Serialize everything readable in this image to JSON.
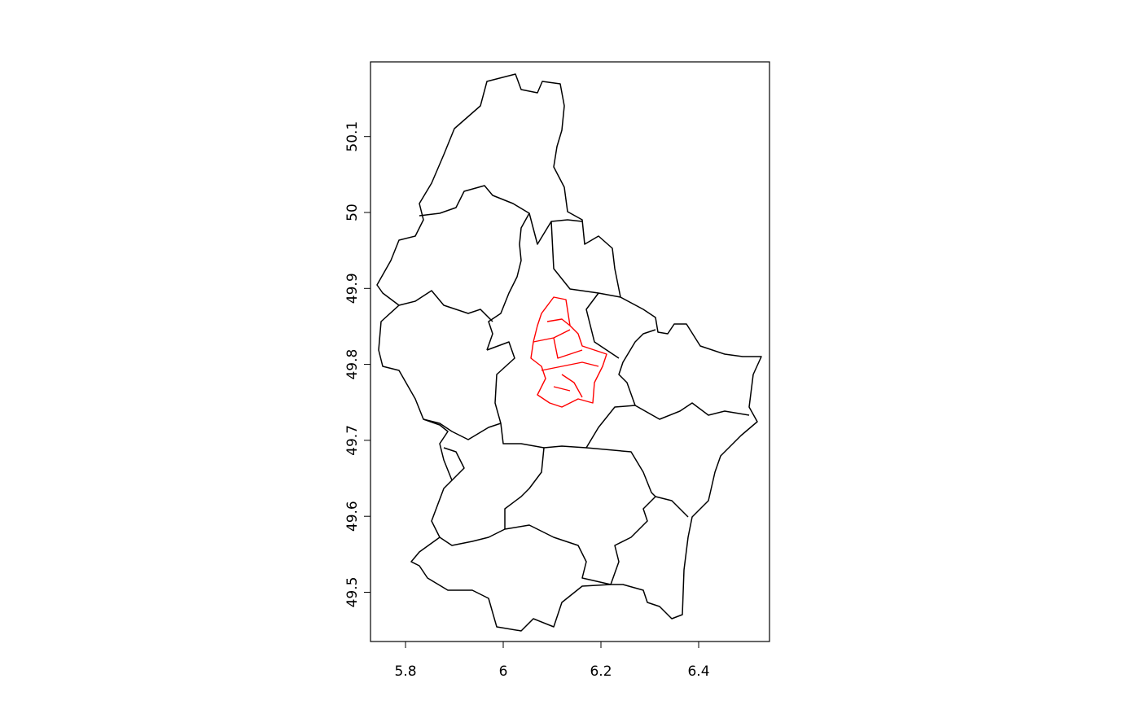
{
  "map": {
    "type": "choropleth-outline",
    "region_line_color": "#000000",
    "highlight_line_color": "#ff0000",
    "x_axis": {
      "ticks": [
        "5.8",
        "6",
        "6.2",
        "6.4"
      ],
      "values": [
        5.8,
        6.0,
        6.2,
        6.4
      ],
      "range": [
        5.73,
        6.55
      ]
    },
    "y_axis": {
      "ticks": [
        "49.5",
        "49.6",
        "49.7",
        "49.8",
        "49.9",
        "50",
        "50.1"
      ],
      "values": [
        49.5,
        49.6,
        49.7,
        49.8,
        49.9,
        50.0,
        50.1
      ],
      "range": [
        49.44,
        50.19
      ]
    }
  }
}
